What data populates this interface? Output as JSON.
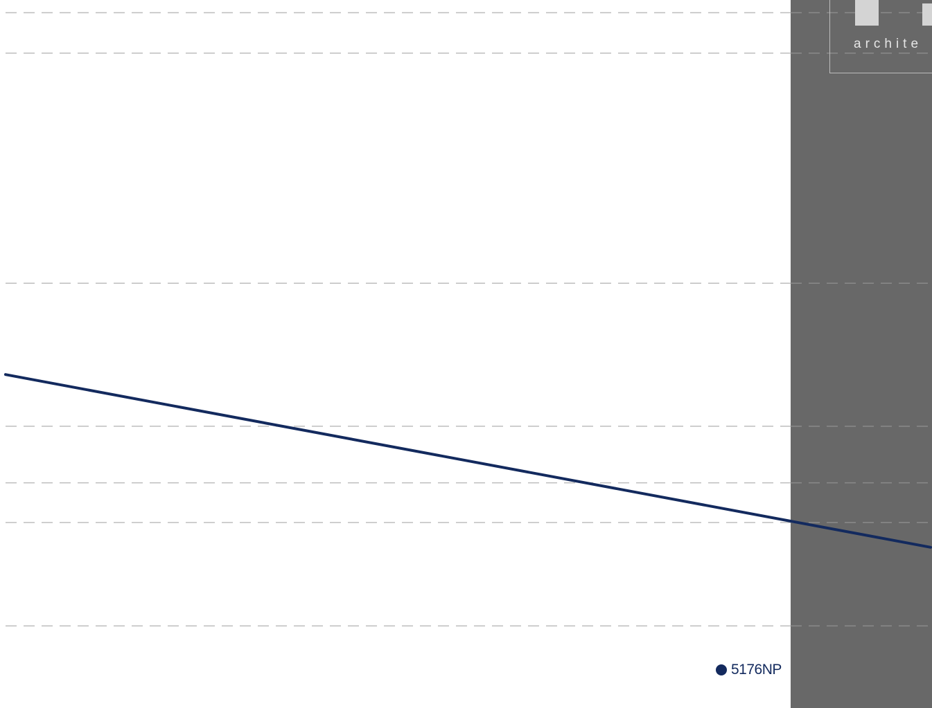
{
  "colors": {
    "series_line": "#132a5e",
    "panel_gray": "#686868",
    "grid": "#bdbdbd",
    "background": "#ffffff"
  },
  "logo": {
    "text": "archite"
  },
  "chart_data": {
    "type": "line",
    "series": [
      {
        "name": "5176NP",
        "color": "#132a5e",
        "points": [
          {
            "x": 0.0,
            "y": 0.471
          },
          {
            "x": 1.0,
            "y": 0.227
          }
        ]
      }
    ],
    "gridlines_y": [
      0.982,
      0.925,
      0.6,
      0.398,
      0.318,
      0.262,
      0.116
    ],
    "grid": true,
    "grid_style": "dashed",
    "legend_position": "bottom-right",
    "xlim": [
      0,
      1
    ],
    "ylim": [
      0,
      1
    ]
  }
}
